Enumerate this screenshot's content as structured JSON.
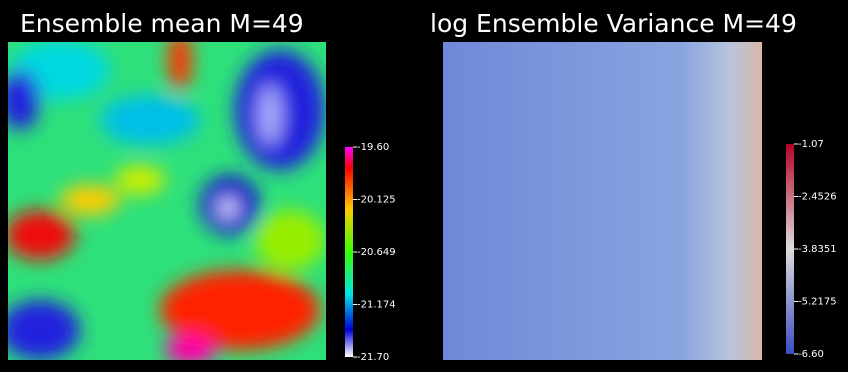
{
  "panels": [
    {
      "title": "Ensemble mean M=49",
      "colorbar": {
        "ticks": [
          "-19.60",
          "-20.125",
          "-20.649",
          "-21.174",
          "-21.70"
        ]
      }
    },
    {
      "title": "log Ensemble Variance M=49",
      "colorbar": {
        "ticks": [
          "-1.07",
          "-2.4526",
          "-3.8351",
          "-5.2175",
          "-6.60"
        ]
      }
    }
  ]
}
